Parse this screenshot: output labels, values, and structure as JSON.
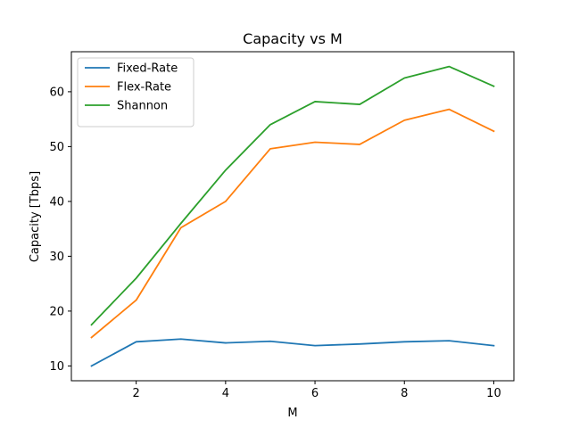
{
  "chart_data": {
    "type": "line",
    "title": "Capacity vs M",
    "xlabel": "M",
    "ylabel": "Capacity [Tbps]",
    "x": [
      1,
      2,
      3,
      4,
      5,
      6,
      7,
      8,
      9,
      10
    ],
    "xlim": [
      0.55,
      10.45
    ],
    "ylim": [
      7.3,
      67.3
    ],
    "xticks": [
      2,
      4,
      6,
      8,
      10
    ],
    "yticks": [
      10,
      20,
      30,
      40,
      50,
      60
    ],
    "grid": false,
    "legend_position": "top-left",
    "series": [
      {
        "name": "Fixed-Rate",
        "color": "#1f77b4",
        "values": [
          10.0,
          14.4,
          14.9,
          14.2,
          14.5,
          13.7,
          14.0,
          14.4,
          14.6,
          13.7
        ]
      },
      {
        "name": "Flex-Rate",
        "color": "#ff7f0e",
        "values": [
          15.2,
          22.0,
          35.2,
          40.0,
          49.6,
          50.8,
          50.4,
          54.8,
          56.8,
          52.8
        ]
      },
      {
        "name": "Shannon",
        "color": "#2ca02c",
        "values": [
          17.5,
          26.0,
          36.0,
          45.7,
          54.0,
          58.2,
          57.7,
          62.5,
          64.6,
          61.0
        ]
      }
    ]
  }
}
